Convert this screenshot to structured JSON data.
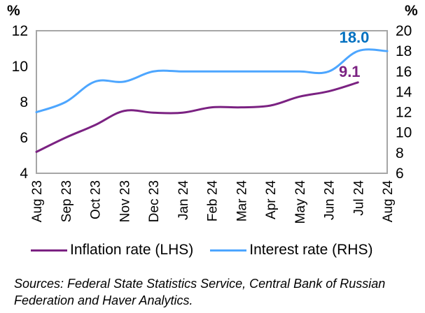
{
  "chart_data": {
    "type": "line",
    "title": "",
    "categories": [
      "Aug 23",
      "Sep 23",
      "Oct 23",
      "Nov 23",
      "Dec 23",
      "Jan 24",
      "Feb 24",
      "Mar 24",
      "Apr 24",
      "May 24",
      "Jun 24",
      "Jul 24",
      "Aug 24"
    ],
    "left_axis": {
      "label": "%",
      "ylim": [
        4,
        12
      ],
      "ticks": [
        "4",
        "6",
        "8",
        "10",
        "12"
      ]
    },
    "right_axis": {
      "label": "%",
      "ylim": [
        6,
        20
      ],
      "ticks": [
        "6",
        "8",
        "10",
        "12",
        "14",
        "16",
        "18",
        "20"
      ]
    },
    "series": [
      {
        "name": "Inflation rate (LHS)",
        "axis": "left",
        "color": "#7B2282",
        "values": [
          5.2,
          6.0,
          6.7,
          7.5,
          7.4,
          7.4,
          7.7,
          7.7,
          7.8,
          8.3,
          8.6,
          9.1,
          null
        ],
        "end_label": "9.1",
        "end_label_color": "#7B2282"
      },
      {
        "name": "Interest rate (RHS)",
        "axis": "right",
        "color": "#4DA6FF",
        "values": [
          12.0,
          13.0,
          15.0,
          15.0,
          16.0,
          16.0,
          16.0,
          16.0,
          16.0,
          16.0,
          16.0,
          18.0,
          18.0
        ],
        "end_label": "18.0",
        "end_label_color": "#0070C0"
      }
    ],
    "grid": false,
    "legend_position": "bottom"
  },
  "legend": {
    "items": [
      {
        "label": "Inflation rate (LHS)",
        "color": "#7B2282"
      },
      {
        "label": "Interest rate (RHS)",
        "color": "#4DA6FF"
      }
    ]
  },
  "source": {
    "text": "Sources: Federal State Statistics Service, Central Bank of Russian Federation and Haver Analytics."
  }
}
